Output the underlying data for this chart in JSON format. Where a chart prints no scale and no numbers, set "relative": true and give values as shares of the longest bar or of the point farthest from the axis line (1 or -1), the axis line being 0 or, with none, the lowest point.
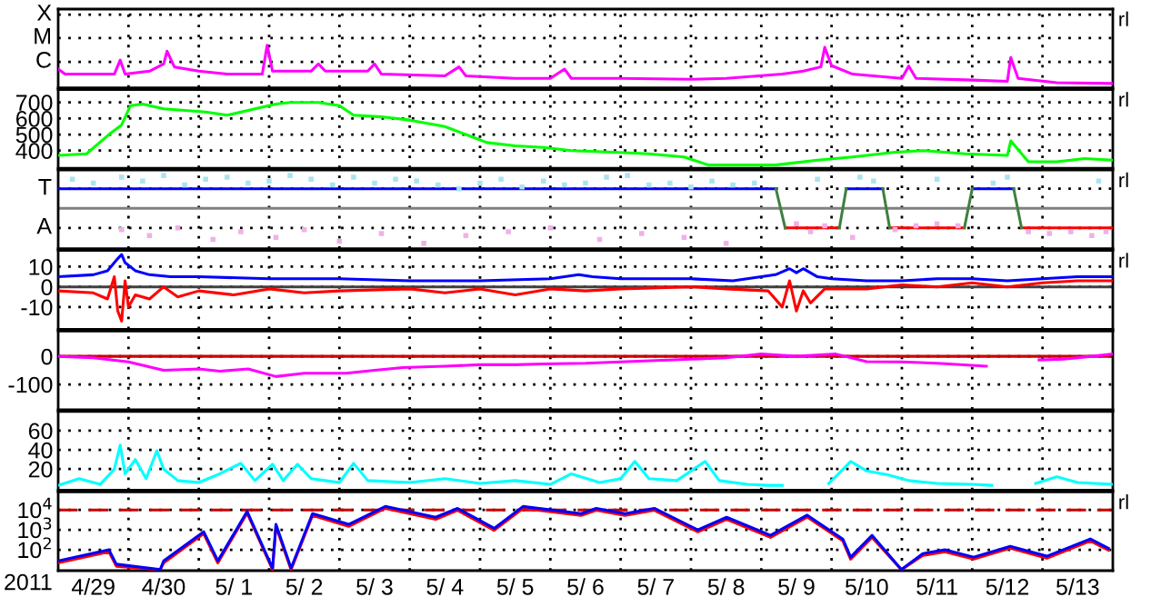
{
  "chart_data": [
    {
      "type": "line",
      "xlim": [
        "2011-04-29",
        "2011-05-14"
      ],
      "xticks": [
        {
          "value": "2011-04-30",
          "label": null
        },
        {
          "value": "2011-05-01",
          "label": null
        },
        {
          "value": "2011-05-02",
          "label": null
        },
        {
          "value": "2011-05-03",
          "label": null
        },
        {
          "value": "2011-05-04",
          "label": null
        },
        {
          "value": "2011-05-05",
          "label": null
        },
        {
          "value": "2011-05-06",
          "label": null
        },
        {
          "value": "2011-05-07",
          "label": null
        },
        {
          "value": "2011-05-08",
          "label": null
        },
        {
          "value": "2011-05-09",
          "label": null
        },
        {
          "value": "2011-05-10",
          "label": null
        },
        {
          "value": "2011-05-11",
          "label": null
        },
        {
          "value": "2011-05-12",
          "label": null
        },
        {
          "value": "2011-05-13",
          "label": null
        }
      ],
      "relative": true,
      "ref_lines": [
        {
          "axis": "y",
          "value": 1.72,
          "label": "X",
          "line_style": "dotted"
        },
        {
          "axis": "y",
          "value": 1.17,
          "label": "M",
          "line_style": "dotted"
        },
        {
          "axis": "y",
          "value": 0.61,
          "label": "C",
          "line_style": "dotted"
        }
      ],
      "tick_labels": false,
      "grid": true,
      "annotations": [
        "rl"
      ],
      "series": [
        {
          "color": "#ff00ff",
          "x": [
            "2011-04-29T00:00",
            "2011-04-29T02:20",
            "2011-04-29T19:10",
            "2011-04-29T21:10",
            "2011-04-29T22:50",
            "2011-04-30T07:10",
            "2011-04-30T12:00",
            "2011-04-30T13:10",
            "2011-04-30T15:40",
            "2011-05-01T00:00",
            "2011-05-01T09:40",
            "2011-05-01T21:40",
            "2011-05-01T23:20",
            "2011-05-02T01:10",
            "2011-05-02T14:20",
            "2011-05-02T16:50",
            "2011-05-02T19:10",
            "2011-05-03T09:40",
            "2011-05-03T12:00",
            "2011-05-03T14:20",
            "2011-05-04T12:00",
            "2011-05-04T16:50",
            "2011-05-04T19:10",
            "2011-05-05T12:00",
            "2011-05-06T00:00",
            "2011-05-06T04:50",
            "2011-05-06T07:10",
            "2011-05-07T00:00",
            "2011-05-08T00:00",
            "2011-05-08T12:00",
            "2011-05-09T07:10",
            "2011-05-09T14:20",
            "2011-05-09T20:20",
            "2011-05-09T21:40",
            "2011-05-10T00:00",
            "2011-05-10T07:10",
            "2011-05-11T00:00",
            "2011-05-11T02:20",
            "2011-05-11T04:50",
            "2011-05-12T00:00",
            "2011-05-12T12:00",
            "2011-05-12T13:10",
            "2011-05-12T15:40",
            "2011-05-13T04:50",
            "2011-05-14T00:00"
          ],
          "values": [
            0.44,
            0.32,
            0.32,
            0.65,
            0.32,
            0.39,
            0.56,
            0.86,
            0.49,
            0.39,
            0.32,
            0.32,
            1,
            0.39,
            0.39,
            0.56,
            0.39,
            0.39,
            0.56,
            0.32,
            0.28,
            0.49,
            0.28,
            0.22,
            0.22,
            0.44,
            0.22,
            0.22,
            0.2,
            0.22,
            0.32,
            0.39,
            0.49,
            0.95,
            0.52,
            0.32,
            0.22,
            0.51,
            0.22,
            0.18,
            0.15,
            0.71,
            0.22,
            0.12,
            0.1
          ]
        }
      ]
    },
    {
      "type": "line",
      "xlim": [
        "2011-04-29",
        "2011-05-14"
      ],
      "xticks": [
        {
          "value": "2011-04-30",
          "label": null
        },
        {
          "value": "2011-05-01",
          "label": null
        },
        {
          "value": "2011-05-02",
          "label": null
        },
        {
          "value": "2011-05-03",
          "label": null
        },
        {
          "value": "2011-05-04",
          "label": null
        },
        {
          "value": "2011-05-05",
          "label": null
        },
        {
          "value": "2011-05-06",
          "label": null
        },
        {
          "value": "2011-05-07",
          "label": null
        },
        {
          "value": "2011-05-08",
          "label": null
        },
        {
          "value": "2011-05-09",
          "label": null
        },
        {
          "value": "2011-05-10",
          "label": null
        },
        {
          "value": "2011-05-11",
          "label": null
        },
        {
          "value": "2011-05-12",
          "label": null
        },
        {
          "value": "2011-05-13",
          "label": null
        }
      ],
      "ylim": [
        290,
        780
      ],
      "yticks": [
        400,
        500,
        600,
        700
      ],
      "tick_labels": "y",
      "grid": true,
      "annotations": [
        "rl"
      ],
      "series": [
        {
          "color": "#00ff00",
          "x": [
            "2011-04-29T00:00",
            "2011-04-29T09:40",
            "2011-04-29T17:20",
            "2011-04-29T21:40",
            "2011-04-30T00:40",
            "2011-04-30T04:50",
            "2011-04-30T12:00",
            "2011-04-30T19:10",
            "2011-05-01T02:20",
            "2011-05-01T09:40",
            "2011-05-01T19:10",
            "2011-05-02T02:20",
            "2011-05-02T07:10",
            "2011-05-02T16:50",
            "2011-05-03T00:00",
            "2011-05-03T04:50",
            "2011-05-03T14:20",
            "2011-05-04T00:00",
            "2011-05-04T12:00",
            "2011-05-04T19:10",
            "2011-05-05T02:20",
            "2011-05-05T12:00",
            "2011-05-05T21:40",
            "2011-05-06T07:10",
            "2011-05-06T21:40",
            "2011-05-07T09:40",
            "2011-05-07T21:40",
            "2011-05-08T06:00",
            "2011-05-08T14:20",
            "2011-05-09T04:50",
            "2011-05-09T19:10",
            "2011-05-10T07:10",
            "2011-05-10T21:40",
            "2011-05-11T07:10",
            "2011-05-11T21:40",
            "2011-05-12T12:00",
            "2011-05-12T13:10",
            "2011-05-12T19:10",
            "2011-05-13T04:50",
            "2011-05-13T14:20",
            "2011-05-14T00:00"
          ],
          "values": [
            370,
            380,
            500,
            560,
            680,
            690,
            660,
            650,
            640,
            620,
            660,
            690,
            700,
            700,
            680,
            620,
            610,
            590,
            550,
            500,
            450,
            430,
            420,
            400,
            390,
            380,
            360,
            310,
            310,
            310,
            340,
            360,
            390,
            400,
            380,
            370,
            460,
            330,
            330,
            350,
            340
          ]
        }
      ]
    },
    {
      "type": "line",
      "xlim": [
        "2011-04-29",
        "2011-05-14"
      ],
      "xticks": [
        {
          "value": "2011-04-30",
          "label": null
        },
        {
          "value": "2011-05-01",
          "label": null
        },
        {
          "value": "2011-05-02",
          "label": null
        },
        {
          "value": "2011-05-03",
          "label": null
        },
        {
          "value": "2011-05-04",
          "label": null
        },
        {
          "value": "2011-05-05",
          "label": null
        },
        {
          "value": "2011-05-06",
          "label": null
        },
        {
          "value": "2011-05-07",
          "label": null
        },
        {
          "value": "2011-05-08",
          "label": null
        },
        {
          "value": "2011-05-09",
          "label": null
        },
        {
          "value": "2011-05-10",
          "label": null
        },
        {
          "value": "2011-05-11",
          "label": null
        },
        {
          "value": "2011-05-12",
          "label": null
        },
        {
          "value": "2011-05-13",
          "label": null
        }
      ],
      "relative": true,
      "tick_labels": false,
      "grid": true,
      "annotations": [
        "rl"
      ],
      "ref_lines": [
        {
          "axis": "y",
          "value": 0,
          "color": "#808080"
        },
        {
          "axis": "y",
          "value": 0.56,
          "label": "T",
          "line_style": "dotted"
        },
        {
          "axis": "y",
          "value": -0.56,
          "label": "A",
          "line_style": "dotted"
        }
      ],
      "series": [
        {
          "type": "scatter",
          "color": "#a8e4f0",
          "x": [
            "2011-04-29T04:50",
            "2011-04-29T12:00",
            "2011-04-29T21:40",
            "2011-04-30T04:50",
            "2011-04-30T12:00",
            "2011-04-30T19:10",
            "2011-05-01T02:20",
            "2011-05-01T09:40",
            "2011-05-01T16:50",
            "2011-05-02T00:00",
            "2011-05-02T07:10",
            "2011-05-02T14:20",
            "2011-05-02T21:40",
            "2011-05-03T04:50",
            "2011-05-03T12:00",
            "2011-05-03T19:10",
            "2011-05-04T02:20",
            "2011-05-04T09:40",
            "2011-05-04T16:50",
            "2011-05-05T00:00",
            "2011-05-05T07:10",
            "2011-05-05T14:20",
            "2011-05-05T21:40",
            "2011-05-06T04:50",
            "2011-05-06T12:00",
            "2011-05-06T19:10",
            "2011-05-07T02:20",
            "2011-05-07T09:40",
            "2011-05-07T16:50",
            "2011-05-08T00:00",
            "2011-05-08T07:10",
            "2011-05-08T14:20",
            "2011-05-08T21:40",
            "2011-05-09T19:10",
            "2011-05-10T09:40",
            "2011-05-10T14:20",
            "2011-05-11T12:00",
            "2011-05-12T07:10",
            "2011-05-12T12:00",
            "2011-05-13T19:10"
          ],
          "values": [
            0.83,
            0.72,
            0.89,
            0.78,
            0.94,
            0.67,
            0.83,
            0.89,
            0.72,
            0.78,
            0.94,
            0.83,
            0.67,
            0.89,
            0.72,
            0.83,
            0.78,
            0.67,
            0.56,
            0.72,
            0.83,
            0.61,
            0.78,
            0.67,
            0.72,
            0.89,
            0.94,
            0.67,
            0.72,
            0.61,
            0.78,
            0.67,
            0.72,
            0.83,
            0.89,
            0.78,
            0.83,
            0.72,
            0.89,
            0.78
          ]
        },
        {
          "type": "scatter",
          "color": "#f0b0e8",
          "x": [
            "2011-04-29T21:40",
            "2011-04-30T07:10",
            "2011-04-30T16:50",
            "2011-05-01T04:50",
            "2011-05-01T14:20",
            "2011-05-02T02:20",
            "2011-05-02T12:00",
            "2011-05-03T00:00",
            "2011-05-03T14:20",
            "2011-05-04T04:50",
            "2011-05-04T19:10",
            "2011-05-05T09:40",
            "2011-05-06T00:00",
            "2011-05-06T16:50",
            "2011-05-07T07:10",
            "2011-05-07T21:40",
            "2011-05-08T12:00",
            "2011-05-09T12:00",
            "2011-05-09T16:50",
            "2011-05-09T21:40",
            "2011-05-10T07:10",
            "2011-05-10T21:40",
            "2011-05-11T04:50",
            "2011-05-11T12:00",
            "2011-05-11T19:10",
            "2011-05-12T19:10",
            "2011-05-13T02:20",
            "2011-05-13T09:40",
            "2011-05-13T16:50",
            "2011-05-13T21:40"
          ],
          "values": [
            -0.61,
            -0.78,
            -0.56,
            -0.89,
            -0.67,
            -0.83,
            -0.61,
            -0.94,
            -0.72,
            -1,
            -0.78,
            -0.67,
            -0.56,
            -0.89,
            -0.72,
            -0.83,
            -1,
            -0.44,
            -0.67,
            -0.5,
            -0.83,
            -0.61,
            -0.5,
            -0.44,
            -0.5,
            -0.67,
            -0.72,
            -0.67,
            -0.78,
            -0.67
          ]
        },
        {
          "color": "#0000ff",
          "x": [
            "2011-04-29T00:00",
            "2011-05-09T05:00",
            "2011-05-09T05:20",
            "2011-05-10T05:00",
            "2011-05-10T17:30",
            "2011-05-10T17:50",
            "2011-05-12T00:00",
            "2011-05-12T14:10"
          ],
          "values": [
            0.56,
            0.56,
            null,
            0.56,
            0.56,
            null,
            0.56,
            0.56
          ]
        },
        {
          "color": "#ff0000",
          "x": [
            "2011-05-09T08:10",
            "2011-05-10T02:40",
            "2011-05-10T02:50",
            "2011-05-10T19:50",
            "2011-05-11T21:20",
            "2011-05-11T21:40",
            "2011-05-12T16:50",
            "2011-05-14T00:00"
          ],
          "values": [
            -0.56,
            -0.56,
            null,
            -0.56,
            -0.56,
            null,
            -0.56,
            -0.56
          ]
        },
        {
          "color": "#408040",
          "x": [
            "2011-05-09T05:00",
            "2011-05-09T08:10",
            "2011-05-09T19:10",
            "2011-05-10T02:40",
            "2011-05-10T05:00",
            "2011-05-10T12:00",
            "2011-05-10T17:30",
            "2011-05-10T19:50",
            "2011-05-11T07:10",
            "2011-05-11T21:20",
            "2011-05-12T00:00",
            "2011-05-12T07:10",
            "2011-05-12T14:10",
            "2011-05-12T16:50"
          ],
          "values": [
            0.56,
            -0.56,
            null,
            -0.56,
            0.56,
            null,
            0.56,
            -0.56,
            null,
            -0.56,
            0.56,
            null,
            0.56,
            -0.56
          ]
        }
      ]
    },
    {
      "type": "line",
      "xlim": [
        "2011-04-29",
        "2011-05-14"
      ],
      "xticks": [
        {
          "value": "2011-04-30",
          "label": null
        },
        {
          "value": "2011-05-01",
          "label": null
        },
        {
          "value": "2011-05-02",
          "label": null
        },
        {
          "value": "2011-05-03",
          "label": null
        },
        {
          "value": "2011-05-04",
          "label": null
        },
        {
          "value": "2011-05-05",
          "label": null
        },
        {
          "value": "2011-05-06",
          "label": null
        },
        {
          "value": "2011-05-07",
          "label": null
        },
        {
          "value": "2011-05-08",
          "label": null
        },
        {
          "value": "2011-05-09",
          "label": null
        },
        {
          "value": "2011-05-10",
          "label": null
        },
        {
          "value": "2011-05-11",
          "label": null
        },
        {
          "value": "2011-05-12",
          "label": null
        },
        {
          "value": "2011-05-13",
          "label": null
        }
      ],
      "ylim": [
        -21,
        18
      ],
      "yticks": [
        10,
        0,
        -10
      ],
      "tick_labels": "y",
      "grid": true,
      "annotations": [
        "rl"
      ],
      "ref_lines": [
        {
          "axis": "y",
          "value": 0,
          "color": "#404040"
        }
      ],
      "series": [
        {
          "color": "#0000ff",
          "x": [
            "2011-04-29T00:00",
            "2011-04-29T12:00",
            "2011-04-29T16:50",
            "2011-04-29T20:20",
            "2011-04-29T21:40",
            "2011-04-29T22:50",
            "2011-04-30T02:20",
            "2011-04-30T07:10",
            "2011-04-30T14:20",
            "2011-05-01T00:00",
            "2011-05-02T00:00",
            "2011-05-03T00:00",
            "2011-05-04T00:00",
            "2011-05-05T00:00",
            "2011-05-06T00:00",
            "2011-05-06T09:40",
            "2011-05-06T14:20",
            "2011-05-07T00:00",
            "2011-05-08T00:00",
            "2011-05-08T14:20",
            "2011-05-09T04:50",
            "2011-05-09T09:40",
            "2011-05-09T12:00",
            "2011-05-09T14:20",
            "2011-05-09T19:10",
            "2011-05-10T00:00",
            "2011-05-10T12:00",
            "2011-05-11T00:00",
            "2011-05-11T12:00",
            "2011-05-12T00:00",
            "2011-05-12T12:00",
            "2011-05-13T00:00",
            "2011-05-13T12:00",
            "2011-05-14T00:00"
          ],
          "values": [
            5,
            6,
            8,
            14,
            16,
            12,
            8,
            6,
            5,
            5,
            4,
            4,
            3,
            3,
            4,
            6,
            5,
            4,
            4,
            3,
            6,
            9,
            7,
            9,
            5,
            4,
            3,
            3,
            4,
            4,
            3,
            4,
            5,
            5
          ]
        },
        {
          "color": "#ff0000",
          "x": [
            "2011-04-29T00:00",
            "2011-04-29T12:00",
            "2011-04-29T16:50",
            "2011-04-29T19:10",
            "2011-04-29T20:20",
            "2011-04-29T21:40",
            "2011-04-29T22:50",
            "2011-04-30T00:00",
            "2011-04-30T02:20",
            "2011-04-30T07:10",
            "2011-04-30T12:00",
            "2011-04-30T16:50",
            "2011-05-01T00:00",
            "2011-05-01T12:00",
            "2011-05-02T00:00",
            "2011-05-02T12:00",
            "2011-05-03T00:00",
            "2011-05-04T00:00",
            "2011-05-04T12:00",
            "2011-05-05T00:00",
            "2011-05-05T12:00",
            "2011-05-06T00:00",
            "2011-05-06T12:00",
            "2011-05-07T00:00",
            "2011-05-08T00:00",
            "2011-05-08T12:00",
            "2011-05-09T02:20",
            "2011-05-09T07:10",
            "2011-05-09T09:40",
            "2011-05-09T12:00",
            "2011-05-09T14:20",
            "2011-05-09T16:50",
            "2011-05-09T21:40",
            "2011-05-10T12:00",
            "2011-05-11T00:00",
            "2011-05-11T12:00",
            "2011-05-12T00:00",
            "2011-05-12T12:00",
            "2011-05-13T00:00",
            "2011-05-13T12:00",
            "2011-05-14T00:00"
          ],
          "values": [
            -2,
            -3,
            -6,
            5,
            -12,
            -17,
            3,
            -10,
            -4,
            -6,
            0,
            -5,
            -2,
            -4,
            -1,
            -3,
            -2,
            -1,
            -3,
            -1,
            -4,
            -1,
            -2,
            -1,
            0,
            -1,
            -2,
            -10,
            3,
            -12,
            -2,
            -8,
            -1,
            -1,
            1,
            0,
            2,
            0,
            2,
            3,
            3
          ]
        }
      ]
    },
    {
      "type": "line",
      "xlim": [
        "2011-04-29",
        "2011-05-14"
      ],
      "xticks": [
        {
          "value": "2011-04-30",
          "label": null
        },
        {
          "value": "2011-05-01",
          "label": null
        },
        {
          "value": "2011-05-02",
          "label": null
        },
        {
          "value": "2011-05-03",
          "label": null
        },
        {
          "value": "2011-05-04",
          "label": null
        },
        {
          "value": "2011-05-05",
          "label": null
        },
        {
          "value": "2011-05-06",
          "label": null
        },
        {
          "value": "2011-05-07",
          "label": null
        },
        {
          "value": "2011-05-08",
          "label": null
        },
        {
          "value": "2011-05-09",
          "label": null
        },
        {
          "value": "2011-05-10",
          "label": null
        },
        {
          "value": "2011-05-11",
          "label": null
        },
        {
          "value": "2011-05-12",
          "label": null
        },
        {
          "value": "2011-05-13",
          "label": null
        }
      ],
      "ylim": [
        -190,
        90
      ],
      "yticks": [
        0,
        -100
      ],
      "tick_labels": "y",
      "grid": true,
      "ref_lines": [
        {
          "axis": "y",
          "value": 0,
          "color": "#cc0000"
        }
      ],
      "series": [
        {
          "color": "#ff00ff",
          "x": [
            "2011-04-29T00:00",
            "2011-04-29T12:00",
            "2011-04-30T00:00",
            "2011-04-30T12:00",
            "2011-05-01T00:00",
            "2011-05-01T07:10",
            "2011-05-01T16:50",
            "2011-05-02T02:20",
            "2011-05-02T12:00",
            "2011-05-03T02:20",
            "2011-05-03T12:00",
            "2011-05-03T21:40",
            "2011-05-04T12:00",
            "2011-05-05T00:00",
            "2011-05-05T12:00",
            "2011-05-05T21:40",
            "2011-05-06T12:00",
            "2011-05-07T00:00",
            "2011-05-07T12:00",
            "2011-05-08T00:00",
            "2011-05-08T12:00",
            "2011-05-09T00:00",
            "2011-05-09T12:00",
            "2011-05-10T01:30",
            "2011-05-10T12:00",
            "2011-05-11T00:00",
            "2011-05-11T12:00",
            "2011-05-12T04:50",
            "2011-05-12T12:00",
            "2011-05-12T22:50",
            "2011-05-13T07:10",
            "2011-05-13T16:50",
            "2011-05-14T00:00"
          ],
          "values": [
            0,
            -5,
            -20,
            -50,
            -45,
            -53,
            -45,
            -72,
            -60,
            -60,
            -50,
            -40,
            -35,
            -30,
            -30,
            -27,
            -25,
            -20,
            -15,
            -10,
            -5,
            8,
            0,
            8,
            -19,
            -20,
            -25,
            -35,
            null,
            -13,
            -10,
            0,
            8
          ]
        }
      ]
    },
    {
      "type": "line",
      "xlim": [
        "2011-04-29",
        "2011-05-14"
      ],
      "xticks": [
        {
          "value": "2011-04-30",
          "label": null
        },
        {
          "value": "2011-05-01",
          "label": null
        },
        {
          "value": "2011-05-02",
          "label": null
        },
        {
          "value": "2011-05-03",
          "label": null
        },
        {
          "value": "2011-05-04",
          "label": null
        },
        {
          "value": "2011-05-05",
          "label": null
        },
        {
          "value": "2011-05-06",
          "label": null
        },
        {
          "value": "2011-05-07",
          "label": null
        },
        {
          "value": "2011-05-08",
          "label": null
        },
        {
          "value": "2011-05-09",
          "label": null
        },
        {
          "value": "2011-05-10",
          "label": null
        },
        {
          "value": "2011-05-11",
          "label": null
        },
        {
          "value": "2011-05-12",
          "label": null
        },
        {
          "value": "2011-05-13",
          "label": null
        }
      ],
      "ylim": [
        -2,
        80
      ],
      "yticks": [
        20,
        40,
        60
      ],
      "tick_labels": "y",
      "grid": true,
      "series": [
        {
          "color": "#00ffff",
          "x": [
            "2011-04-29T00:00",
            "2011-04-29T07:10",
            "2011-04-29T14:20",
            "2011-04-29T19:10",
            "2011-04-29T21:10",
            "2011-04-29T22:50",
            "2011-04-30T02:20",
            "2011-04-30T06:00",
            "2011-04-30T09:40",
            "2011-04-30T12:00",
            "2011-04-30T16:50",
            "2011-05-01T00:00",
            "2011-05-01T07:10",
            "2011-05-01T14:20",
            "2011-05-01T19:10",
            "2011-05-02T01:10",
            "2011-05-02T04:50",
            "2011-05-02T09:40",
            "2011-05-02T14:20",
            "2011-05-02T19:10",
            "2011-05-03T00:00",
            "2011-05-03T04:50",
            "2011-05-03T09:40",
            "2011-05-04T00:00",
            "2011-05-04T12:00",
            "2011-05-05T00:00",
            "2011-05-05T12:00",
            "2011-05-06T00:00",
            "2011-05-06T07:10",
            "2011-05-06T16:50",
            "2011-05-07T00:00",
            "2011-05-07T04:50",
            "2011-05-07T09:40",
            "2011-05-07T19:10",
            "2011-05-08T04:50",
            "2011-05-08T09:40",
            "2011-05-08T19:10",
            "2011-05-09T02:20",
            "2011-05-09T07:10",
            "2011-05-09T14:20",
            "2011-05-09T23:00",
            "2011-05-10T02:20",
            "2011-05-10T06:30",
            "2011-05-10T12:00",
            "2011-05-10T19:10",
            "2011-05-11T02:20",
            "2011-05-11T12:00",
            "2011-05-12T00:00",
            "2011-05-12T06:40",
            "2011-05-12T14:20",
            "2011-05-12T21:40",
            "2011-05-13T04:50",
            "2011-05-13T12:00",
            "2011-05-14T00:00"
          ],
          "values": [
            3,
            10,
            4,
            20,
            45,
            15,
            30,
            10,
            39,
            20,
            8,
            6,
            15,
            26,
            8,
            25,
            8,
            25,
            10,
            8,
            6,
            26,
            8,
            6,
            10,
            5,
            8,
            4,
            15,
            6,
            10,
            28,
            10,
            8,
            28,
            8,
            4,
            3,
            3,
            null,
            5,
            15,
            28,
            18,
            14,
            8,
            5,
            4,
            3,
            null,
            5,
            12,
            6,
            4
          ]
        }
      ]
    },
    {
      "type": "line",
      "log": "y",
      "xlim": [
        "2011-04-29",
        "2011-05-14"
      ],
      "xticks": [
        {
          "value": "2011-04-29T12:00",
          "label": "4/29"
        },
        {
          "value": "2011-04-30",
          "label": null
        },
        {
          "value": "2011-04-30T12:00",
          "label": "4/30"
        },
        {
          "value": "2011-05-01",
          "label": null
        },
        {
          "value": "2011-05-01T12:00",
          "label": "5/ 1"
        },
        {
          "value": "2011-05-02",
          "label": null
        },
        {
          "value": "2011-05-02T12:00",
          "label": "5/ 2"
        },
        {
          "value": "2011-05-03",
          "label": null
        },
        {
          "value": "2011-05-03T12:00",
          "label": "5/ 3"
        },
        {
          "value": "2011-05-04",
          "label": null
        },
        {
          "value": "2011-05-04T12:00",
          "label": "5/ 4"
        },
        {
          "value": "2011-05-05",
          "label": null
        },
        {
          "value": "2011-05-05T12:00",
          "label": "5/ 5"
        },
        {
          "value": "2011-05-06",
          "label": null
        },
        {
          "value": "2011-05-06T12:00",
          "label": "5/ 6"
        },
        {
          "value": "2011-05-07",
          "label": null
        },
        {
          "value": "2011-05-07T12:00",
          "label": "5/ 7"
        },
        {
          "value": "2011-05-08",
          "label": null
        },
        {
          "value": "2011-05-08T12:00",
          "label": "5/ 8"
        },
        {
          "value": "2011-05-09",
          "label": null
        },
        {
          "value": "2011-05-09T12:00",
          "label": "5/ 9"
        },
        {
          "value": "2011-05-10",
          "label": null
        },
        {
          "value": "2011-05-10T12:00",
          "label": "5/10"
        },
        {
          "value": "2011-05-11",
          "label": null
        },
        {
          "value": "2011-05-11T12:00",
          "label": "5/11"
        },
        {
          "value": "2011-05-12",
          "label": null
        },
        {
          "value": "2011-05-12T12:00",
          "label": "5/12"
        },
        {
          "value": "2011-05-13",
          "label": null
        },
        {
          "value": "2011-05-13T12:00",
          "label": "5/13"
        }
      ],
      "xlabel": "2011",
      "ylim": [
        9,
        80000
      ],
      "yticks": [
        {
          "value": 10000,
          "label": "10$^{4}$"
        },
        {
          "value": 1000,
          "label": "10$^{3}$"
        },
        {
          "value": 100,
          "label": "10$^{2}$"
        }
      ],
      "grid": true,
      "annotations": [
        "rl"
      ],
      "ref_lines": [
        {
          "axis": "y",
          "value": 10000,
          "color": "#cc0000",
          "line_style": "dashed"
        }
      ],
      "series": [
        {
          "color": "#ff0000",
          "x": [
            "2011-04-29T00:00",
            "2011-04-29T17:20",
            "2011-04-29T19:50",
            "2011-04-30T10:50",
            "2011-04-30T12:00",
            "2011-05-01T01:40",
            "2011-05-01T06:30",
            "2011-05-01T16:30",
            "2011-05-02T01:10",
            "2011-05-02T02:20",
            "2011-05-02T07:30",
            "2011-05-02T14:50",
            "2011-05-03T03:10",
            "2011-05-03T15:40",
            "2011-05-04T08:50",
            "2011-05-04T16:20",
            "2011-05-05T04:50",
            "2011-05-05T14:40",
            "2011-05-06T10:30",
            "2011-05-06T15:40",
            "2011-05-07T01:30",
            "2011-05-07T11:30",
            "2011-05-08T02:20",
            "2011-05-08T12:10",
            "2011-05-09T03:10",
            "2011-05-09T15:40",
            "2011-05-10T03:50",
            "2011-05-10T06:30",
            "2011-05-10T13:50",
            "2011-05-10T23:50",
            "2011-05-11T07:10",
            "2011-05-11T14:40",
            "2011-05-12T00:30",
            "2011-05-12T13:00",
            "2011-05-13T01:30",
            "2011-05-13T16:20",
            "2011-05-13T22:30"
          ],
          "values": [
            22,
            80,
            15,
            10,
            22,
            650,
            22,
            7000,
            10,
            1500,
            10,
            5300,
            1500,
            12000,
            3400,
            9600,
            960,
            12000,
            5300,
            9600,
            5300,
            9600,
            800,
            3400,
            420,
            4400,
            280,
            34,
            420,
            10,
            52,
            80,
            34,
            120,
            38,
            280,
            96
          ]
        },
        {
          "color": "#0000ff",
          "x": [
            "2011-04-29T00:00",
            "2011-04-29T17:20",
            "2011-04-29T19:50",
            "2011-04-30T10:50",
            "2011-04-30T12:00",
            "2011-05-01T01:40",
            "2011-05-01T06:30",
            "2011-05-01T16:30",
            "2011-05-02T01:10",
            "2011-05-02T02:20",
            "2011-05-02T07:30",
            "2011-05-02T14:50",
            "2011-05-03T03:10",
            "2011-05-03T15:40",
            "2011-05-04T08:50",
            "2011-05-04T16:20",
            "2011-05-05T04:50",
            "2011-05-05T14:40",
            "2011-05-06T10:30",
            "2011-05-06T15:40",
            "2011-05-07T01:30",
            "2011-05-07T11:30",
            "2011-05-08T02:20",
            "2011-05-08T12:10",
            "2011-05-09T03:10",
            "2011-05-09T15:40",
            "2011-05-10T03:50",
            "2011-05-10T06:30",
            "2011-05-10T13:50",
            "2011-05-10T23:50",
            "2011-05-11T07:10",
            "2011-05-11T14:40",
            "2011-05-12T00:30",
            "2011-05-12T13:00",
            "2011-05-13T01:30",
            "2011-05-13T16:20",
            "2011-05-13T22:30"
          ],
          "values": [
            28,
            100,
            19,
            10.3,
            28,
            810,
            28,
            8500,
            12,
            1900,
            12,
            6600,
            1900,
            15000,
            4300,
            12000,
            1200,
            15000,
            6600,
            12000,
            6600,
            12000,
            1000,
            4300,
            530,
            5500,
            350,
            43,
            530,
            10.3,
            65,
            100,
            43,
            150,
            48,
            350,
            120
          ]
        }
      ]
    }
  ]
}
